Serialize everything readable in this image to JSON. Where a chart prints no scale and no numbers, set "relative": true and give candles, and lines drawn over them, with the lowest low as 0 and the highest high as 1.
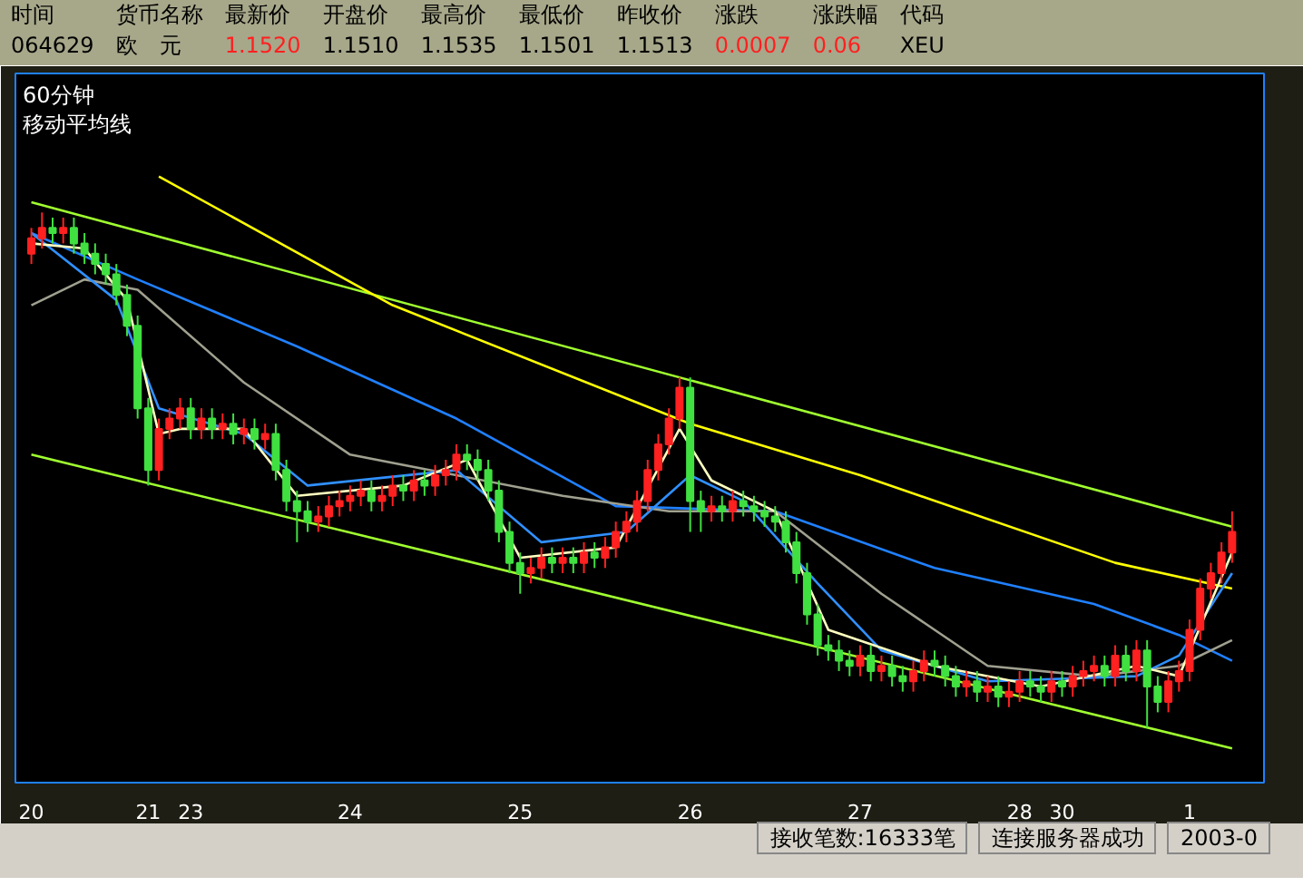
{
  "chart_data": {
    "type": "candlestick",
    "title": "60分钟",
    "subtitle": "移动平均线",
    "relative": true,
    "grid": false,
    "annotations": [
      "时间",
      "货币名称",
      "最新价",
      "开盘价",
      "最高价",
      "最低价",
      "昨收价",
      "涨跌",
      "涨跌幅",
      "代码",
      "064629",
      "欧　元",
      "1.1520",
      "1.1510",
      "1.1535",
      "1.1501",
      "1.1513",
      "0.0007",
      "0.06",
      "XEU",
      "接收笔数:16333笔",
      "连接服务器成功",
      "2003-0"
    ],
    "colors": [
      "#ff2020",
      "#ff2020",
      "#40e040",
      "#ff2020",
      "#40e040",
      "#40e040",
      "#40e040",
      "#40e040",
      "#40e040",
      "#40e040",
      "#40e040",
      "#40e040",
      "#ff2020",
      "#ff2020",
      "#ff2020",
      "#40e040",
      "#ff2020",
      "#40e040",
      "#ff2020",
      "#40e040",
      "#ff2020",
      "#40e040",
      "#ff2020",
      "#40e040",
      "#40e040",
      "#40e040",
      "#40e040",
      "#ff2020",
      "#ff2020",
      "#ff2020",
      "#ff2020",
      "#ff2020",
      "#40e040",
      "#ff2020",
      "#ff2020",
      "#40e040",
      "#ff2020",
      "#40e040",
      "#ff2020",
      "#ff2020",
      "#ff2020",
      "#40e040",
      "#40e040",
      "#40e040",
      "#40e040",
      "#40e040",
      "#40e040",
      "#ff2020",
      "#ff2020",
      "#40e040",
      "#ff2020",
      "#40e040",
      "#ff2020",
      "#40e040",
      "#ff2020",
      "#ff2020",
      "#ff2020",
      "#ff2020",
      "#ff2020",
      "#ff2020",
      "#ff2020",
      "#ff2020",
      "#40e040",
      "#40e040",
      "#ff2020",
      "#40e040",
      "#ff2020",
      "#40e040",
      "#40e040",
      "#40e040",
      "#40e040",
      "#40e040",
      "#40e040",
      "#40e040",
      "#40e040",
      "#40e040",
      "#40e040",
      "#40e040",
      "#ff2020",
      "#40e040",
      "#ff2020",
      "#40e040",
      "#40e040",
      "#ff2020",
      "#ff2020",
      "#40e040",
      "#40e040",
      "#40e040",
      "#ff2020",
      "#40e040",
      "#ff2020",
      "#40e040",
      "#ff2020",
      "#ff2020",
      "#40e040",
      "#40e040",
      "#ff2020",
      "#40e040",
      "#ff2020",
      "#ff2020",
      "#ff2020",
      "#40e040",
      "#ff2020",
      "#40e040",
      "#ff2020",
      "#40e040",
      "#40e040",
      "#ff2020",
      "#ff2020",
      "#ff2020",
      "#ff2020",
      "#ff2020",
      "#ff2020",
      "#ff2020"
    ],
    "categories": [
      "20",
      null,
      null,
      null,
      null,
      null,
      null,
      null,
      null,
      null,
      null,
      "21",
      null,
      null,
      null,
      "23",
      null,
      null,
      null,
      null,
      null,
      null,
      null,
      null,
      null,
      null,
      null,
      null,
      null,
      null,
      "24",
      null,
      null,
      null,
      null,
      null,
      null,
      null,
      null,
      null,
      null,
      null,
      null,
      null,
      null,
      null,
      "25",
      null,
      null,
      null,
      null,
      null,
      null,
      null,
      null,
      null,
      null,
      null,
      null,
      null,
      null,
      null,
      "26",
      null,
      null,
      null,
      null,
      null,
      null,
      null,
      null,
      null,
      null,
      null,
      null,
      null,
      null,
      null,
      "27",
      null,
      null,
      null,
      null,
      null,
      null,
      null,
      null,
      null,
      null,
      null,
      null,
      null,
      null,
      "28",
      null,
      null,
      null,
      "30",
      null,
      null,
      null,
      null,
      null,
      null,
      null,
      null,
      null,
      null,
      null,
      "1",
      null,
      null,
      null,
      null
    ],
    "ohlc": [
      [
        0.92,
        0.97,
        0.9,
        0.95
      ],
      [
        0.95,
        1.0,
        0.93,
        0.97
      ],
      [
        0.97,
        0.99,
        0.94,
        0.96
      ],
      [
        0.96,
        0.99,
        0.94,
        0.97
      ],
      [
        0.97,
        0.99,
        0.92,
        0.94
      ],
      [
        0.94,
        0.96,
        0.9,
        0.92
      ],
      [
        0.92,
        0.94,
        0.88,
        0.9
      ],
      [
        0.9,
        0.92,
        0.86,
        0.88
      ],
      [
        0.88,
        0.9,
        0.82,
        0.84
      ],
      [
        0.84,
        0.86,
        0.76,
        0.78
      ],
      [
        0.78,
        0.8,
        0.6,
        0.62
      ],
      [
        0.62,
        0.64,
        0.47,
        0.5
      ],
      [
        0.5,
        0.6,
        0.48,
        0.58
      ],
      [
        0.58,
        0.62,
        0.56,
        0.6
      ],
      [
        0.6,
        0.64,
        0.58,
        0.62
      ],
      [
        0.62,
        0.64,
        0.56,
        0.58
      ],
      [
        0.58,
        0.62,
        0.56,
        0.6
      ],
      [
        0.6,
        0.62,
        0.56,
        0.58
      ],
      [
        0.58,
        0.61,
        0.56,
        0.59
      ],
      [
        0.59,
        0.61,
        0.55,
        0.57
      ],
      [
        0.57,
        0.6,
        0.55,
        0.58
      ],
      [
        0.58,
        0.6,
        0.54,
        0.56
      ],
      [
        0.56,
        0.59,
        0.54,
        0.57
      ],
      [
        0.57,
        0.59,
        0.48,
        0.5
      ],
      [
        0.5,
        0.52,
        0.42,
        0.44
      ],
      [
        0.44,
        0.46,
        0.36,
        0.42
      ],
      [
        0.42,
        0.44,
        0.38,
        0.4
      ],
      [
        0.4,
        0.43,
        0.38,
        0.41
      ],
      [
        0.41,
        0.45,
        0.39,
        0.43
      ],
      [
        0.43,
        0.46,
        0.41,
        0.44
      ],
      [
        0.44,
        0.47,
        0.42,
        0.45
      ],
      [
        0.45,
        0.48,
        0.43,
        0.46
      ],
      [
        0.46,
        0.48,
        0.42,
        0.44
      ],
      [
        0.44,
        0.47,
        0.42,
        0.45
      ],
      [
        0.45,
        0.49,
        0.43,
        0.47
      ],
      [
        0.47,
        0.49,
        0.44,
        0.46
      ],
      [
        0.46,
        0.5,
        0.44,
        0.48
      ],
      [
        0.48,
        0.5,
        0.45,
        0.47
      ],
      [
        0.47,
        0.51,
        0.45,
        0.49
      ],
      [
        0.49,
        0.52,
        0.47,
        0.5
      ],
      [
        0.5,
        0.55,
        0.48,
        0.53
      ],
      [
        0.53,
        0.55,
        0.5,
        0.52
      ],
      [
        0.52,
        0.54,
        0.48,
        0.5
      ],
      [
        0.5,
        0.52,
        0.44,
        0.46
      ],
      [
        0.46,
        0.48,
        0.36,
        0.38
      ],
      [
        0.38,
        0.4,
        0.3,
        0.32
      ],
      [
        0.32,
        0.34,
        0.26,
        0.3
      ],
      [
        0.3,
        0.33,
        0.28,
        0.31
      ],
      [
        0.31,
        0.35,
        0.29,
        0.33
      ],
      [
        0.33,
        0.35,
        0.3,
        0.32
      ],
      [
        0.32,
        0.35,
        0.3,
        0.33
      ],
      [
        0.33,
        0.35,
        0.3,
        0.32
      ],
      [
        0.32,
        0.36,
        0.3,
        0.34
      ],
      [
        0.34,
        0.36,
        0.31,
        0.33
      ],
      [
        0.33,
        0.37,
        0.31,
        0.35
      ],
      [
        0.35,
        0.4,
        0.33,
        0.38
      ],
      [
        0.38,
        0.42,
        0.36,
        0.4
      ],
      [
        0.4,
        0.46,
        0.38,
        0.44
      ],
      [
        0.44,
        0.52,
        0.42,
        0.5
      ],
      [
        0.5,
        0.57,
        0.48,
        0.55
      ],
      [
        0.55,
        0.62,
        0.53,
        0.6
      ],
      [
        0.6,
        0.68,
        0.58,
        0.66
      ],
      [
        0.66,
        0.68,
        0.38,
        0.44
      ],
      [
        0.44,
        0.46,
        0.38,
        0.42
      ],
      [
        0.42,
        0.45,
        0.4,
        0.43
      ],
      [
        0.43,
        0.45,
        0.4,
        0.42
      ],
      [
        0.42,
        0.46,
        0.4,
        0.44
      ],
      [
        0.44,
        0.46,
        0.41,
        0.43
      ],
      [
        0.43,
        0.45,
        0.4,
        0.42
      ],
      [
        0.42,
        0.44,
        0.39,
        0.41
      ],
      [
        0.41,
        0.43,
        0.38,
        0.4
      ],
      [
        0.4,
        0.42,
        0.34,
        0.36
      ],
      [
        0.36,
        0.38,
        0.28,
        0.3
      ],
      [
        0.3,
        0.32,
        0.2,
        0.22
      ],
      [
        0.22,
        0.24,
        0.14,
        0.16
      ],
      [
        0.16,
        0.18,
        0.13,
        0.15
      ],
      [
        0.15,
        0.17,
        0.11,
        0.13
      ],
      [
        0.13,
        0.15,
        0.1,
        0.12
      ],
      [
        0.12,
        0.16,
        0.1,
        0.14
      ],
      [
        0.14,
        0.16,
        0.09,
        0.11
      ],
      [
        0.11,
        0.14,
        0.09,
        0.12
      ],
      [
        0.12,
        0.14,
        0.08,
        0.1
      ],
      [
        0.1,
        0.12,
        0.07,
        0.09
      ],
      [
        0.09,
        0.13,
        0.07,
        0.11
      ],
      [
        0.11,
        0.15,
        0.09,
        0.13
      ],
      [
        0.13,
        0.15,
        0.1,
        0.12
      ],
      [
        0.12,
        0.14,
        0.08,
        0.1
      ],
      [
        0.1,
        0.12,
        0.06,
        0.08
      ],
      [
        0.08,
        0.11,
        0.06,
        0.09
      ],
      [
        0.09,
        0.11,
        0.05,
        0.07
      ],
      [
        0.07,
        0.1,
        0.05,
        0.08
      ],
      [
        0.08,
        0.1,
        0.04,
        0.06
      ],
      [
        0.06,
        0.09,
        0.04,
        0.07
      ],
      [
        0.07,
        0.11,
        0.05,
        0.09
      ],
      [
        0.09,
        0.11,
        0.06,
        0.08
      ],
      [
        0.08,
        0.1,
        0.05,
        0.07
      ],
      [
        0.07,
        0.11,
        0.05,
        0.09
      ],
      [
        0.09,
        0.11,
        0.06,
        0.08
      ],
      [
        0.08,
        0.12,
        0.06,
        0.1
      ],
      [
        0.1,
        0.13,
        0.08,
        0.11
      ],
      [
        0.11,
        0.14,
        0.09,
        0.12
      ],
      [
        0.12,
        0.14,
        0.08,
        0.1
      ],
      [
        0.1,
        0.16,
        0.08,
        0.14
      ],
      [
        0.14,
        0.16,
        0.09,
        0.11
      ],
      [
        0.11,
        0.17,
        0.09,
        0.15
      ],
      [
        0.15,
        0.17,
        0.0,
        0.08
      ],
      [
        0.08,
        0.1,
        0.03,
        0.05
      ],
      [
        0.05,
        0.11,
        0.03,
        0.09
      ],
      [
        0.09,
        0.13,
        0.07,
        0.11
      ],
      [
        0.11,
        0.21,
        0.09,
        0.19
      ],
      [
        0.19,
        0.29,
        0.17,
        0.27
      ],
      [
        0.27,
        0.32,
        0.25,
        0.3
      ],
      [
        0.3,
        0.36,
        0.28,
        0.34
      ],
      [
        0.34,
        0.42,
        0.32,
        0.38
      ]
    ],
    "series": [
      {
        "type": "line",
        "color": "#a0ff30",
        "values": [
          1.02,
          null,
          null,
          null,
          null,
          null,
          null,
          null,
          null,
          null,
          null,
          null,
          null,
          null,
          null,
          null,
          null,
          null,
          null,
          null,
          null,
          null,
          null,
          null,
          null,
          null,
          null,
          null,
          null,
          null,
          null,
          null,
          null,
          null,
          null,
          null,
          null,
          null,
          null,
          null,
          null,
          null,
          null,
          null,
          null,
          null,
          null,
          null,
          null,
          null,
          null,
          null,
          null,
          null,
          null,
          null,
          null,
          null,
          null,
          null,
          null,
          null,
          null,
          null,
          null,
          null,
          null,
          null,
          null,
          null,
          null,
          null,
          null,
          null,
          null,
          null,
          null,
          null,
          null,
          null,
          null,
          null,
          null,
          null,
          null,
          null,
          null,
          null,
          null,
          null,
          null,
          null,
          null,
          null,
          null,
          null,
          null,
          null,
          null,
          null,
          null,
          null,
          null,
          null,
          null,
          null,
          null,
          null,
          null,
          null,
          null,
          null,
          null,
          0.39
        ]
      },
      {
        "type": "line",
        "color": "#a0ff30",
        "values": [
          0.53,
          null,
          null,
          null,
          null,
          null,
          null,
          null,
          null,
          null,
          null,
          null,
          null,
          null,
          null,
          null,
          null,
          null,
          null,
          null,
          null,
          null,
          null,
          null,
          null,
          null,
          null,
          null,
          null,
          null,
          null,
          null,
          null,
          null,
          null,
          null,
          null,
          null,
          null,
          null,
          null,
          null,
          null,
          null,
          null,
          null,
          null,
          null,
          null,
          null,
          null,
          null,
          null,
          null,
          null,
          null,
          null,
          null,
          null,
          null,
          null,
          null,
          null,
          null,
          null,
          null,
          null,
          null,
          null,
          null,
          null,
          null,
          null,
          null,
          null,
          null,
          null,
          null,
          null,
          null,
          null,
          null,
          null,
          null,
          null,
          null,
          null,
          null,
          null,
          null,
          null,
          null,
          null,
          null,
          null,
          null,
          null,
          null,
          null,
          null,
          null,
          null,
          null,
          null,
          null,
          null,
          null,
          null,
          null,
          null,
          null,
          null,
          null,
          -0.04
        ]
      },
      {
        "type": "line",
        "color": "#ffff00",
        "values": [
          null,
          null,
          null,
          null,
          null,
          null,
          null,
          null,
          null,
          null,
          null,
          null,
          1.07,
          null,
          null,
          null,
          null,
          null,
          null,
          null,
          null,
          null,
          null,
          null,
          null,
          null,
          null,
          null,
          null,
          null,
          null,
          null,
          null,
          null,
          0.82,
          null,
          null,
          null,
          null,
          null,
          null,
          null,
          null,
          null,
          null,
          null,
          null,
          null,
          null,
          null,
          null,
          null,
          null,
          null,
          null,
          null,
          null,
          null,
          null,
          null,
          null,
          null,
          0.59,
          null,
          null,
          null,
          null,
          null,
          null,
          null,
          null,
          null,
          null,
          null,
          null,
          null,
          null,
          null,
          0.49,
          null,
          null,
          null,
          null,
          null,
          null,
          null,
          null,
          null,
          null,
          null,
          null,
          null,
          null,
          null,
          null,
          null,
          null,
          null,
          null,
          null,
          null,
          null,
          0.32,
          null,
          null,
          null,
          null,
          null,
          null,
          null,
          null,
          null,
          null,
          0.27
        ]
      },
      {
        "type": "line",
        "color": "#2080ff",
        "values": [
          0.96,
          null,
          null,
          null,
          null,
          null,
          null,
          null,
          null,
          null,
          0.87,
          null,
          null,
          null,
          null,
          null,
          null,
          null,
          null,
          null,
          null,
          null,
          null,
          null,
          null,
          0.74,
          null,
          null,
          null,
          null,
          null,
          null,
          null,
          null,
          null,
          null,
          null,
          null,
          null,
          null,
          0.6,
          null,
          null,
          null,
          null,
          null,
          null,
          null,
          null,
          null,
          null,
          null,
          null,
          null,
          null,
          0.43,
          null,
          null,
          null,
          null,
          null,
          null,
          null,
          null,
          null,
          null,
          null,
          null,
          null,
          null,
          0.42,
          null,
          null,
          null,
          null,
          null,
          null,
          null,
          null,
          null,
          null,
          null,
          null,
          null,
          null,
          0.31,
          null,
          null,
          null,
          null,
          null,
          null,
          null,
          null,
          null,
          null,
          null,
          null,
          null,
          null,
          0.24,
          null,
          null,
          null,
          null,
          null,
          null,
          null,
          0.18,
          null,
          null,
          null,
          null,
          0.13
        ]
      },
      {
        "type": "line",
        "color": "#a0a090",
        "values": [
          0.82,
          null,
          null,
          null,
          null,
          0.87,
          null,
          null,
          null,
          null,
          0.85,
          null,
          null,
          null,
          null,
          null,
          null,
          null,
          null,
          null,
          0.67,
          null,
          null,
          null,
          null,
          null,
          null,
          null,
          null,
          null,
          0.53,
          null,
          null,
          null,
          null,
          null,
          null,
          null,
          null,
          null,
          0.49,
          null,
          null,
          null,
          null,
          null,
          null,
          null,
          null,
          null,
          0.45,
          null,
          null,
          null,
          null,
          null,
          null,
          null,
          null,
          null,
          0.42,
          null,
          null,
          null,
          null,
          null,
          null,
          null,
          null,
          null,
          0.42,
          null,
          null,
          null,
          null,
          null,
          null,
          null,
          null,
          null,
          0.26,
          null,
          null,
          null,
          null,
          null,
          null,
          null,
          null,
          null,
          0.12,
          null,
          null,
          null,
          null,
          null,
          null,
          null,
          null,
          null,
          0.1,
          null,
          null,
          null,
          null,
          null,
          null,
          null,
          0.12,
          null,
          null,
          null,
          null,
          0.17
        ]
      },
      {
        "type": "line",
        "color": "#3090ff",
        "values": [
          0.96,
          null,
          null,
          null,
          null,
          null,
          null,
          null,
          0.83,
          null,
          null,
          null,
          0.62,
          null,
          null,
          null,
          null,
          null,
          null,
          null,
          0.57,
          null,
          null,
          null,
          null,
          null,
          0.47,
          null,
          null,
          null,
          null,
          null,
          null,
          null,
          null,
          null,
          null,
          null,
          null,
          null,
          0.5,
          null,
          null,
          null,
          null,
          null,
          null,
          null,
          0.36,
          null,
          null,
          null,
          null,
          null,
          null,
          null,
          0.38,
          null,
          null,
          null,
          null,
          null,
          0.49,
          null,
          null,
          null,
          null,
          0.44,
          null,
          null,
          null,
          null,
          null,
          null,
          0.28,
          null,
          null,
          null,
          null,
          null,
          0.15,
          null,
          null,
          null,
          null,
          null,
          null,
          null,
          null,
          null,
          0.09,
          null,
          null,
          null,
          null,
          null,
          null,
          null,
          null,
          null,
          null,
          null,
          null,
          null,
          0.1,
          null,
          null,
          null,
          0.14,
          null,
          null,
          null,
          null,
          0.3
        ]
      },
      {
        "type": "line",
        "color": "#ffffc0",
        "values": [
          0.94,
          null,
          null,
          null,
          null,
          0.93,
          null,
          null,
          null,
          0.83,
          null,
          null,
          0.57,
          null,
          0.58,
          null,
          null,
          null,
          null,
          null,
          0.58,
          null,
          null,
          null,
          null,
          0.45,
          null,
          null,
          null,
          null,
          null,
          null,
          null,
          null,
          null,
          0.47,
          null,
          null,
          null,
          null,
          null,
          0.52,
          null,
          null,
          null,
          null,
          0.33,
          null,
          null,
          null,
          null,
          null,
          null,
          null,
          null,
          0.35,
          null,
          null,
          null,
          null,
          null,
          0.58,
          null,
          null,
          0.48,
          null,
          null,
          null,
          null,
          null,
          0.42,
          null,
          null,
          null,
          null,
          0.19,
          null,
          null,
          null,
          null,
          null,
          null,
          null,
          null,
          null,
          0.12,
          null,
          null,
          null,
          null,
          null,
          null,
          null,
          null,
          null,
          0.08,
          null,
          null,
          null,
          null,
          null,
          null,
          null,
          null,
          0.12,
          null,
          null,
          null,
          0.1,
          null,
          null,
          null,
          null,
          0.34
        ]
      }
    ]
  }
}
